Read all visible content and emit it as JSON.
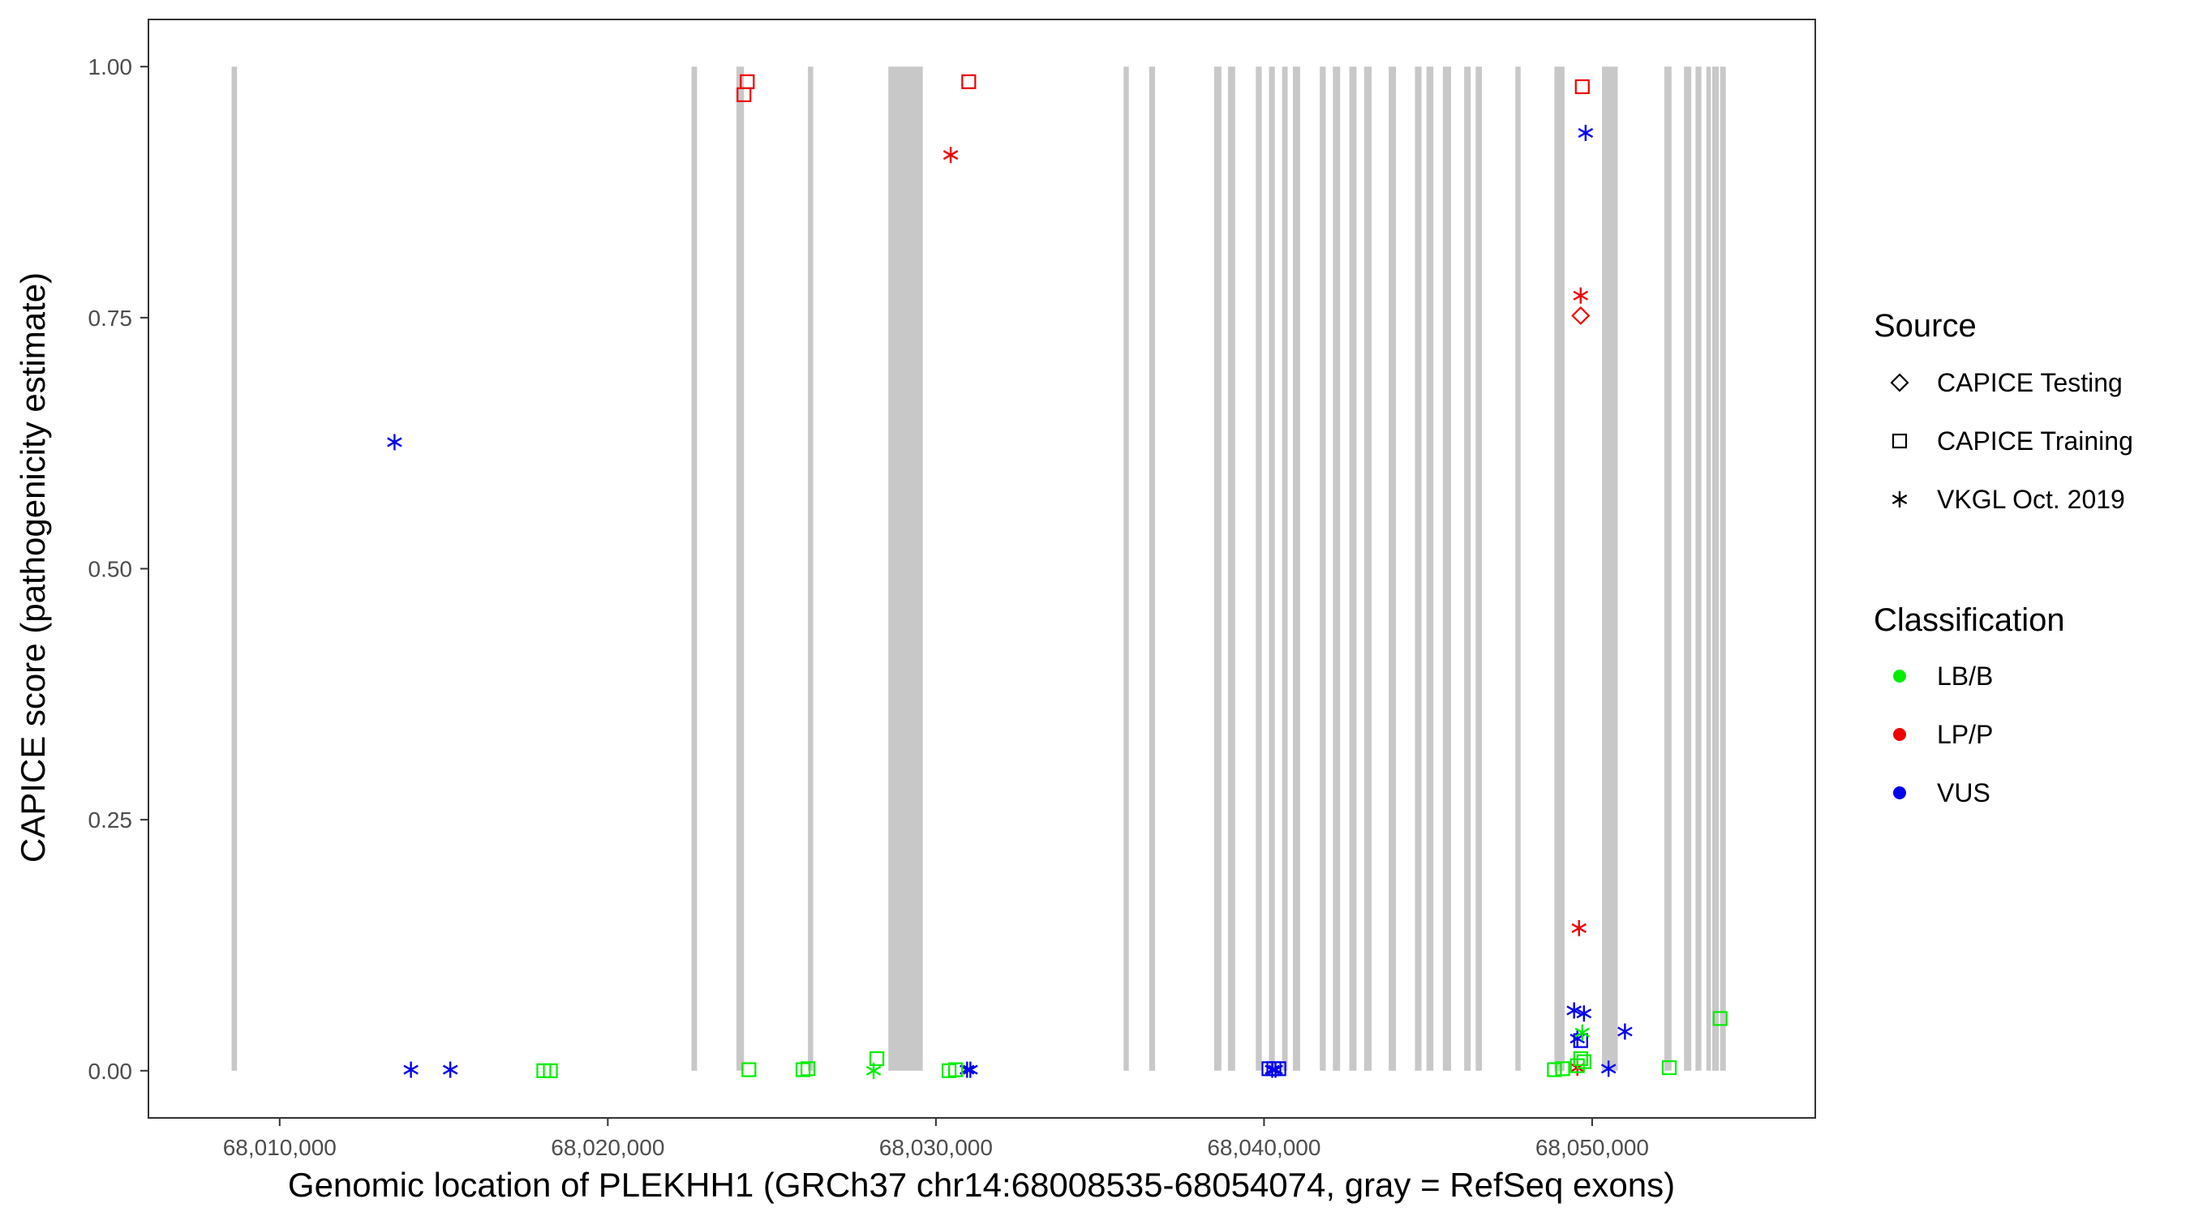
{
  "chart_data": {
    "type": "scatter",
    "xlabel": "Genomic location of PLEKHH1 (GRCh37 chr14:68008535-68054074, gray = RefSeq exons)",
    "ylabel": "CAPICE score (pathogenicity estimate)",
    "xlim": [
      68006000,
      68056800
    ],
    "ylim": [
      -0.047,
      1.047
    ],
    "x_ticks": [
      68010000,
      68020000,
      68030000,
      68040000,
      68050000
    ],
    "x_tick_labels": [
      "68,010,000",
      "68,020,000",
      "68,030,000",
      "68,040,000",
      "68,050,000"
    ],
    "y_ticks": [
      0,
      0.25,
      0.5,
      0.75,
      1.0
    ],
    "y_tick_labels": [
      "0.00",
      "0.25",
      "0.50",
      "0.75",
      "1.00"
    ],
    "grid": false,
    "exon_color": "#c8c8c8",
    "exons": [
      [
        68008535,
        68008700
      ],
      [
        68022550,
        68022720
      ],
      [
        68023920,
        68024150
      ],
      [
        68026100,
        68026260
      ],
      [
        68028550,
        68029600
      ],
      [
        68035720,
        68035880
      ],
      [
        68036500,
        68036680
      ],
      [
        68038480,
        68038700
      ],
      [
        68038900,
        68039120
      ],
      [
        68039750,
        68039930
      ],
      [
        68040150,
        68040330
      ],
      [
        68040550,
        68040720
      ],
      [
        68040880,
        68041100
      ],
      [
        68041700,
        68041880
      ],
      [
        68042100,
        68042320
      ],
      [
        68042600,
        68042820
      ],
      [
        68043050,
        68043280
      ],
      [
        68043800,
        68044020
      ],
      [
        68044600,
        68044800
      ],
      [
        68044950,
        68045160
      ],
      [
        68045450,
        68045700
      ],
      [
        68046100,
        68046300
      ],
      [
        68046450,
        68046640
      ],
      [
        68047660,
        68047820
      ],
      [
        68048850,
        68049160
      ],
      [
        68050300,
        68050780
      ],
      [
        68052200,
        68052420
      ],
      [
        68052800,
        68053020
      ],
      [
        68053150,
        68053330
      ],
      [
        68053480,
        68053620
      ],
      [
        68053660,
        68053860
      ],
      [
        68053900,
        68054074
      ]
    ],
    "legend": {
      "position": "right",
      "source_title": "Source",
      "source_items": [
        {
          "label": "CAPICE Testing",
          "shape": "diamond"
        },
        {
          "label": "CAPICE Training",
          "shape": "square"
        },
        {
          "label": "VKGL Oct. 2019",
          "shape": "asterisk"
        }
      ],
      "class_title": "Classification",
      "class_items": [
        {
          "label": "LB/B",
          "color": "#00ee00"
        },
        {
          "label": "LP/P",
          "color": "#ee0000"
        },
        {
          "label": "VUS",
          "color": "#0000ee"
        }
      ]
    },
    "series": [
      {
        "source": "CAPICE Training",
        "classification": "LP/P",
        "points": [
          [
            68024250,
            0.985
          ],
          [
            68024150,
            0.972
          ],
          [
            68031000,
            0.985
          ],
          [
            68049700,
            0.98
          ]
        ]
      },
      {
        "source": "VKGL Oct. 2019",
        "classification": "LP/P",
        "points": [
          [
            68030450,
            0.912
          ],
          [
            68049650,
            0.772
          ],
          [
            68049600,
            0.142
          ],
          [
            68049550,
            0.003
          ]
        ]
      },
      {
        "source": "CAPICE Testing",
        "classification": "LP/P",
        "points": [
          [
            68049650,
            0.752
          ]
        ]
      },
      {
        "source": "VKGL Oct. 2019",
        "classification": "VUS",
        "points": [
          [
            68013500,
            0.626
          ],
          [
            68049800,
            0.934
          ],
          [
            68014000,
            0.001
          ],
          [
            68015200,
            0.001
          ],
          [
            68030950,
            0.001
          ],
          [
            68031050,
            0.001
          ],
          [
            68040250,
            0.001
          ],
          [
            68040350,
            0.001
          ],
          [
            68049450,
            0.06
          ],
          [
            68049750,
            0.057
          ],
          [
            68049550,
            0.032
          ],
          [
            68050500,
            0.002
          ],
          [
            68051000,
            0.039
          ]
        ]
      },
      {
        "source": "CAPICE Training",
        "classification": "VUS",
        "points": [
          [
            68040150,
            0.002
          ],
          [
            68040300,
            0.002
          ],
          [
            68040450,
            0.002
          ],
          [
            68049650,
            0.03
          ]
        ]
      },
      {
        "source": "CAPICE Training",
        "classification": "LB/B",
        "points": [
          [
            68018050,
            0.0
          ],
          [
            68018250,
            0.0
          ],
          [
            68024300,
            0.001
          ],
          [
            68025950,
            0.001
          ],
          [
            68026100,
            0.002
          ],
          [
            68028200,
            0.012
          ],
          [
            68030400,
            0.0
          ],
          [
            68030600,
            0.001
          ],
          [
            68048850,
            0.001
          ],
          [
            68049100,
            0.002
          ],
          [
            68049550,
            0.005
          ],
          [
            68049650,
            0.012
          ],
          [
            68049750,
            0.009
          ],
          [
            68052350,
            0.003
          ],
          [
            68053900,
            0.052
          ]
        ]
      },
      {
        "source": "VKGL Oct. 2019",
        "classification": "LB/B",
        "points": [
          [
            68028100,
            0.0
          ],
          [
            68049700,
            0.038
          ]
        ]
      }
    ]
  }
}
